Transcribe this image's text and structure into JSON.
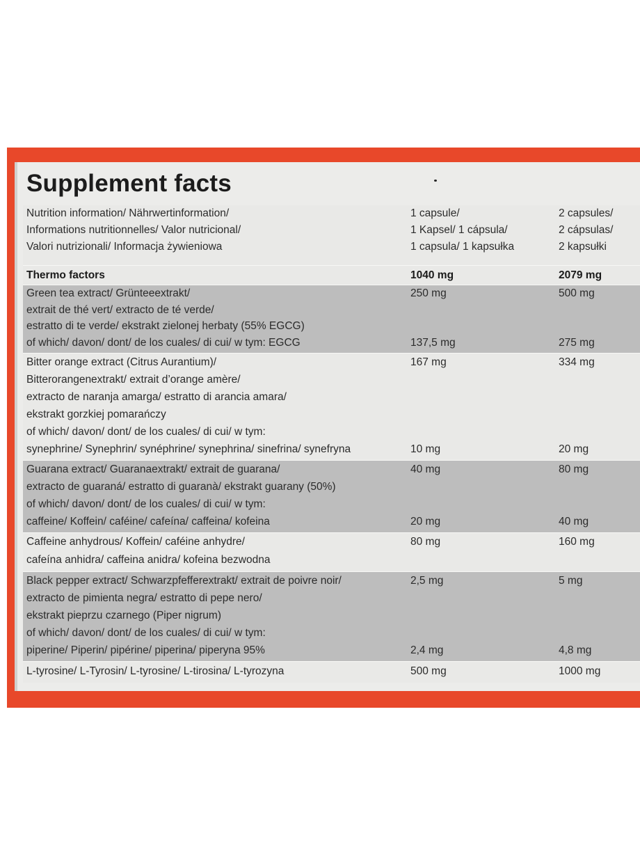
{
  "title": "Supplement facts",
  "header": {
    "lines": [
      [
        "Nutrition information/ Nährwertinformation/",
        "1 capsule/",
        "2 capsules/"
      ],
      [
        "Informations nutritionnelles/ Valor nutricional/",
        "1 Kapsel/ 1 cápsula/",
        "2 cápsulas/"
      ],
      [
        "Valori nutrizionali/ Informacja żywieniowa",
        "1 capsula/ 1 kapsułka",
        "2 kapsułki"
      ]
    ]
  },
  "thermo": {
    "label": "Thermo factors",
    "one": "1040 mg",
    "two": "2079 mg"
  },
  "rows": [
    {
      "lines": [
        [
          "Green tea extract/ Grünteeextrakt/",
          "250 mg",
          "500 mg"
        ],
        [
          "extrait de thé vert/ extracto de té verde/",
          "",
          ""
        ],
        [
          "estratto di te verde/ ekstrakt zielonej herbaty (55% EGCG)",
          "",
          ""
        ],
        [
          "of which/ davon/ dont/ de los cuales/ di cui/ w tym: EGCG",
          "137,5 mg",
          "275 mg"
        ]
      ]
    },
    {
      "lines": [
        [
          "Bitter orange extract (Citrus Aurantium)/",
          "167 mg",
          "334 mg"
        ],
        [
          "Bitterorangenextrakt/ extrait d’orange amère/",
          "",
          ""
        ],
        [
          "extracto de naranja amarga/ estratto di arancia amara/",
          "",
          ""
        ],
        [
          "ekstrakt gorzkiej pomarańczy",
          "",
          ""
        ],
        [
          "of which/ davon/ dont/ de los cuales/ di cui/ w tym:",
          "",
          ""
        ],
        [
          "synephrine/ Synephrin/ synéphrine/ synephrina/ sinefrina/ synefryna",
          "10 mg",
          "20 mg"
        ]
      ]
    },
    {
      "lines": [
        [
          "Guarana extract/ Guaranaextrakt/ extrait de guarana/",
          "40 mg",
          "80 mg"
        ],
        [
          "extracto de guaraná/ estratto di guaranà/ ekstrakt guarany (50%)",
          "",
          ""
        ],
        [
          "of which/ davon/ dont/ de los cuales/ di cui/ w tym:",
          "",
          ""
        ],
        [
          "caffeine/ Koffein/ caféine/ cafeína/ caffeina/ kofeina",
          "20 mg",
          "40 mg"
        ]
      ]
    },
    {
      "lines": [
        [
          "Caffeine anhydrous/ Koffein/ caféine anhydre/",
          "80 mg",
          "160 mg"
        ],
        [
          "cafeína anhidra/ caffeina anidra/ kofeina bezwodna",
          "",
          ""
        ]
      ]
    },
    {
      "lines": [
        [
          "Black pepper extract/ Schwarzpfefferextrakt/ extrait de poivre noir/",
          "2,5 mg",
          "5 mg"
        ],
        [
          "extracto de pimienta negra/ estratto di pepe nero/",
          "",
          ""
        ],
        [
          "ekstrakt pieprzu czarnego (Piper nigrum)",
          "",
          ""
        ],
        [
          "of which/ davon/ dont/ de los cuales/ di cui/ w tym:",
          "",
          ""
        ],
        [
          "piperine/ Piperin/ pipérine/ piperina/ piperyna 95%",
          "2,4 mg",
          "4,8 mg"
        ]
      ]
    },
    {
      "lines": [
        [
          "L-tyrosine/ L-Tyrosin/ L-tyrosine/ L-tirosina/ L-tyrozyna",
          "500 mg",
          "1000 mg"
        ]
      ]
    }
  ]
}
